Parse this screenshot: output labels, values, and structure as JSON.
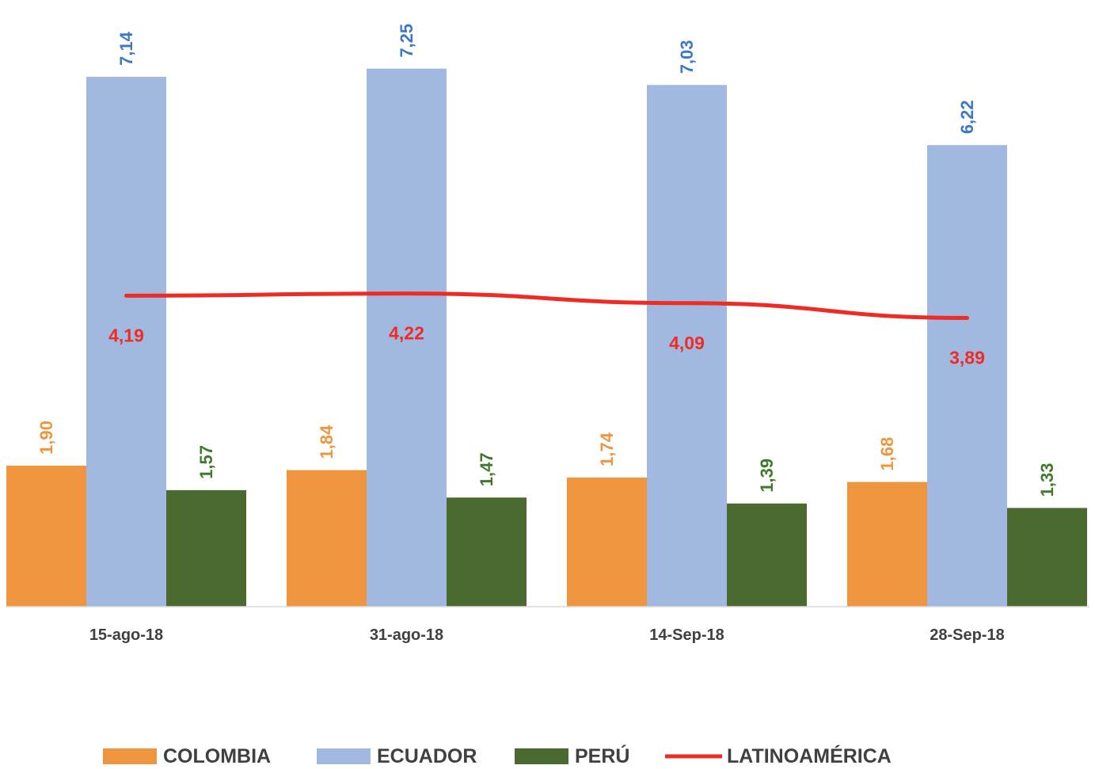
{
  "chart_data": {
    "type": "bar",
    "categories": [
      "15-ago-18",
      "31-ago-18",
      "14-Sep-18",
      "28-Sep-18"
    ],
    "series": [
      {
        "name": "COLOMBIA",
        "kind": "bar",
        "color": "#f0953f",
        "values": [
          1.9,
          1.84,
          1.74,
          1.68
        ],
        "labels": [
          "1,90",
          "1,84",
          "1,74",
          "1,68"
        ]
      },
      {
        "name": "ECUADOR",
        "kind": "bar",
        "color": "#a1b9e0",
        "label_color": "#3c78c8",
        "values": [
          7.14,
          7.25,
          7.03,
          6.22
        ],
        "labels": [
          "7,14",
          "7,25",
          "7,03",
          "6,22"
        ]
      },
      {
        "name": "PERÚ",
        "kind": "bar",
        "color": "#4a6a2f",
        "label_color": "#3f7a2a",
        "values": [
          1.57,
          1.47,
          1.39,
          1.33
        ],
        "labels": [
          "1,57",
          "1,47",
          "1,39",
          "1,33"
        ]
      },
      {
        "name": "LATINOAMÉRICA",
        "kind": "line",
        "color": "#ee2c24",
        "values": [
          4.19,
          4.22,
          4.09,
          3.89
        ],
        "labels": [
          "4,19",
          "4,22",
          "4,09",
          "3,89"
        ]
      }
    ],
    "legend": "bottom",
    "grid": false,
    "ylim": [
      0,
      8
    ]
  }
}
